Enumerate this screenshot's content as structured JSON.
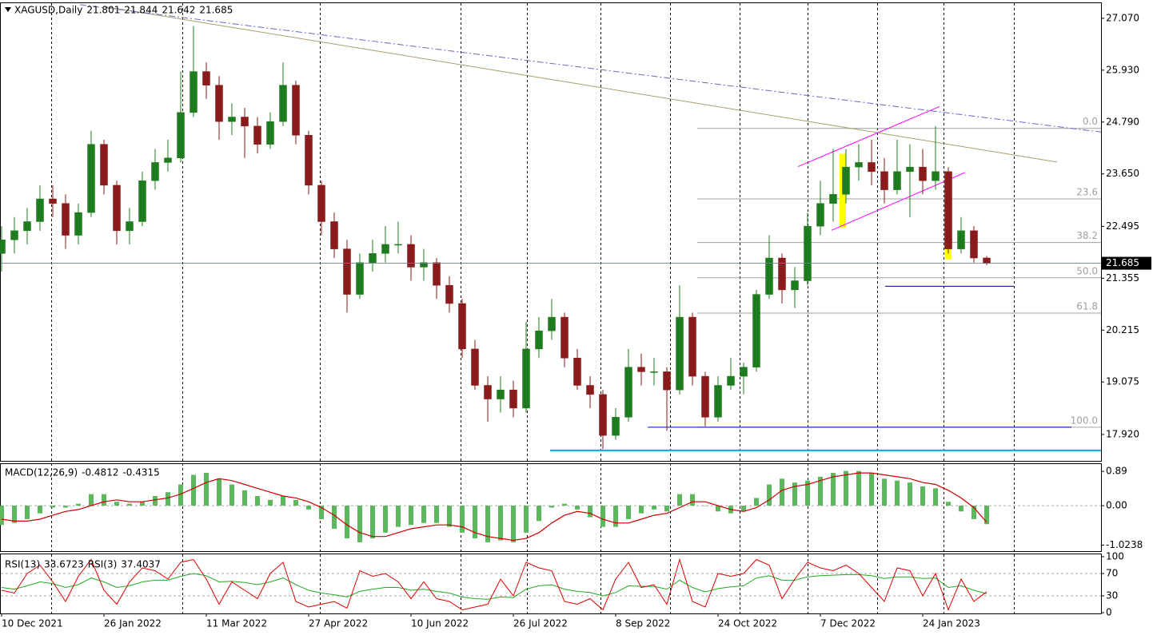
{
  "chart_data": [
    {
      "type": "candlestick",
      "title": "XAGUSD,Daily",
      "colors": {
        "up": "#1e7b1e",
        "down": "#8b1a1a"
      },
      "x": [
        0,
        4,
        8,
        12,
        16,
        20,
        24,
        28,
        32,
        36,
        40,
        44,
        48,
        52,
        56,
        60,
        64,
        68,
        72,
        76,
        80,
        84,
        88,
        92,
        96,
        100,
        104,
        108,
        112,
        116,
        120,
        124,
        128,
        132,
        136,
        140,
        144,
        148,
        152,
        156,
        160,
        164,
        168,
        172,
        176,
        180,
        184,
        188,
        192,
        196,
        200,
        204,
        208,
        212,
        216,
        220,
        224,
        228,
        232,
        236,
        240,
        244,
        248,
        252,
        256,
        260,
        264,
        268,
        272,
        276,
        280,
        284,
        288,
        292,
        296,
        300,
        304,
        308
      ],
      "ohlc": [
        [
          21.9,
          22.5,
          21.5,
          22.2
        ],
        [
          22.2,
          22.7,
          21.9,
          22.4
        ],
        [
          22.4,
          22.9,
          22.1,
          22.6
        ],
        [
          22.6,
          23.4,
          22.4,
          23.1
        ],
        [
          23.1,
          23.4,
          22.7,
          23.0
        ],
        [
          23.0,
          23.2,
          22.0,
          22.3
        ],
        [
          22.3,
          23.0,
          22.1,
          22.8
        ],
        [
          22.8,
          24.6,
          22.7,
          24.3
        ],
        [
          24.3,
          24.4,
          23.2,
          23.4
        ],
        [
          23.4,
          23.5,
          22.1,
          22.4
        ],
        [
          22.4,
          22.9,
          22.1,
          22.6
        ],
        [
          22.6,
          23.7,
          22.5,
          23.5
        ],
        [
          23.5,
          24.2,
          23.3,
          23.9
        ],
        [
          23.9,
          24.4,
          23.7,
          24.0
        ],
        [
          24.0,
          25.9,
          23.9,
          25.0
        ],
        [
          25.0,
          26.9,
          24.9,
          25.9
        ],
        [
          25.9,
          26.1,
          25.3,
          25.6
        ],
        [
          25.6,
          25.8,
          24.4,
          24.8
        ],
        [
          24.8,
          25.2,
          24.5,
          24.9
        ],
        [
          24.9,
          25.1,
          24.0,
          24.7
        ],
        [
          24.7,
          24.9,
          24.1,
          24.3
        ],
        [
          24.3,
          25.0,
          24.2,
          24.8
        ],
        [
          24.8,
          26.1,
          24.7,
          25.6
        ],
        [
          25.6,
          25.7,
          24.3,
          24.5
        ],
        [
          24.5,
          24.6,
          23.2,
          23.4
        ],
        [
          23.4,
          23.5,
          22.3,
          22.6
        ],
        [
          22.6,
          22.8,
          21.8,
          22.0
        ],
        [
          22.0,
          22.2,
          20.6,
          21.0
        ],
        [
          21.0,
          21.9,
          20.9,
          21.7
        ],
        [
          21.7,
          22.2,
          21.5,
          21.9
        ],
        [
          21.9,
          22.5,
          21.7,
          22.1
        ],
        [
          22.1,
          22.6,
          21.9,
          22.1
        ],
        [
          22.1,
          22.3,
          21.3,
          21.6
        ],
        [
          21.6,
          22.0,
          21.3,
          21.7
        ],
        [
          21.7,
          21.8,
          20.9,
          21.2
        ],
        [
          21.2,
          21.4,
          20.6,
          20.8
        ],
        [
          20.8,
          20.9,
          19.6,
          19.8
        ],
        [
          19.8,
          20.0,
          18.9,
          19.0
        ],
        [
          19.0,
          19.2,
          18.2,
          18.7
        ],
        [
          18.7,
          19.2,
          18.4,
          18.9
        ],
        [
          18.9,
          19.1,
          18.3,
          18.5
        ],
        [
          18.5,
          20.4,
          18.4,
          19.8
        ],
        [
          19.8,
          20.5,
          19.6,
          20.2
        ],
        [
          20.2,
          20.9,
          20.0,
          20.5
        ],
        [
          20.5,
          20.6,
          19.4,
          19.6
        ],
        [
          19.6,
          19.8,
          18.9,
          19.0
        ],
        [
          19.0,
          19.2,
          18.5,
          18.8
        ],
        [
          18.8,
          18.9,
          17.6,
          17.9
        ],
        [
          17.9,
          18.5,
          17.8,
          18.3
        ],
        [
          18.3,
          19.8,
          18.2,
          19.4
        ],
        [
          19.4,
          19.7,
          19.0,
          19.3
        ],
        [
          19.3,
          19.6,
          19.0,
          19.3
        ],
        [
          19.3,
          19.4,
          18.0,
          18.9
        ],
        [
          18.9,
          21.2,
          18.8,
          20.5
        ],
        [
          20.5,
          20.6,
          19.0,
          19.2
        ],
        [
          19.2,
          19.3,
          18.1,
          18.3
        ],
        [
          18.3,
          19.2,
          18.2,
          19.0
        ],
        [
          19.0,
          19.6,
          18.9,
          19.2
        ],
        [
          19.2,
          19.5,
          18.8,
          19.4
        ],
        [
          19.4,
          21.1,
          19.3,
          21.0
        ],
        [
          21.0,
          22.3,
          20.9,
          21.8
        ],
        [
          21.8,
          21.9,
          20.8,
          21.1
        ],
        [
          21.1,
          21.6,
          20.7,
          21.3
        ],
        [
          21.3,
          22.8,
          21.2,
          22.5
        ],
        [
          22.5,
          23.5,
          22.3,
          23.0
        ],
        [
          23.0,
          24.2,
          22.6,
          23.2
        ],
        [
          23.2,
          24.2,
          23.0,
          23.8
        ],
        [
          23.8,
          24.3,
          23.5,
          23.9
        ],
        [
          23.9,
          24.4,
          23.4,
          23.7
        ],
        [
          23.7,
          24.0,
          23.0,
          23.3
        ],
        [
          23.3,
          24.4,
          23.2,
          23.7
        ],
        [
          23.7,
          24.3,
          22.7,
          23.8
        ],
        [
          23.8,
          24.2,
          23.2,
          23.5
        ],
        [
          23.5,
          24.7,
          23.3,
          23.7
        ],
        [
          23.7,
          23.8,
          21.9,
          22.0
        ],
        [
          22.0,
          22.7,
          21.9,
          22.4
        ],
        [
          22.4,
          22.5,
          21.7,
          21.8
        ],
        [
          21.801,
          21.844,
          21.642,
          21.685
        ]
      ],
      "xlim": [
        -0.5,
        343.75
      ],
      "ylim": [
        17.34,
        27.42
      ],
      "xticks": [
        {
          "value": 0,
          "label": "10 Dec 2021"
        },
        {
          "value": 32,
          "label": "26 Jan 2022"
        },
        {
          "value": 64,
          "label": "11 Mar 2022"
        },
        {
          "value": 96,
          "label": "27 Apr 2022"
        },
        {
          "value": 128,
          "label": "10 Jun 2022"
        },
        {
          "value": 160,
          "label": "26 Jul 2022"
        },
        {
          "value": 192,
          "label": "8 Sep 2022"
        },
        {
          "value": 224,
          "label": "24 Oct 2022"
        },
        {
          "value": 256,
          "label": "7 Dec 2022"
        },
        {
          "value": 288,
          "label": "24 Jan 2023"
        }
      ],
      "yticks": [
        {
          "value": 27.07,
          "label": "27.070"
        },
        {
          "value": 25.93,
          "label": "25.930"
        },
        {
          "value": 24.79,
          "label": "24.790"
        },
        {
          "value": 23.65,
          "label": "23.650"
        },
        22.495,
        21.355,
        20.215,
        19.075,
        {
          "value": 17.92,
          "label": "17.920"
        }
      ],
      "xgrid": [
        15.5,
        56.5,
        99.5,
        143.5,
        164.25,
        187.25,
        209,
        230.75,
        252,
        273.75,
        294.5,
        316.5
      ],
      "trendlines": [
        {
          "x": [
            32,
            330
          ],
          "y": [
            27.33,
            23.91
          ],
          "color": "#a89f6a",
          "style": "solid"
        },
        {
          "x": [
            24.5,
            343.75
          ],
          "y": [
            27.37,
            24.57
          ],
          "color": "#6666cc",
          "style": "dashdot"
        },
        {
          "x": [
            249,
            293.25
          ],
          "y": [
            23.81,
            25.13
          ],
          "color": "#ff00ff",
          "style": "solid"
        },
        {
          "x": [
            259.5,
            301.25
          ],
          "y": [
            22.41,
            23.68
          ],
          "color": "#ff00ff",
          "style": "solid"
        },
        {
          "x": [
            202,
            334.5
          ],
          "y": [
            18.08,
            18.08
          ],
          "color": "#0000cc",
          "style": "solid"
        },
        {
          "x": [
            276.25,
            316.5
          ],
          "y": [
            21.18,
            21.18
          ],
          "color": "#000080",
          "style": "solid"
        },
        {
          "x": [
            171.5,
            343.75
          ],
          "y": [
            17.57,
            17.57
          ],
          "color": "#00aaee",
          "style": "thick"
        }
      ],
      "highlights": [
        {
          "x": [
            262,
            264
          ],
          "y": [
            24.09,
            22.47
          ],
          "color": "#ffff00"
        },
        {
          "x": [
            295,
            297
          ],
          "y": [
            23.38,
            21.77
          ],
          "color": "#ffff00"
        }
      ],
      "fibonacci": {
        "x": [
          217.5,
          343.75
        ],
        "y": [
          24.65,
          18.08
        ],
        "color": "#a0a0a0",
        "levels": [
          {
            "value": 0,
            "label": "0.0"
          },
          23.6,
          38.2,
          {
            "value": 50,
            "label": "50.0"
          },
          61.8,
          {
            "value": 100,
            "label": "100.0"
          }
        ]
      }
    },
    {
      "type": "macd",
      "title": "MACD(12,26,9)",
      "histogram": {
        "color": "#5cb85c",
        "values": [
          -0.5,
          -0.45,
          -0.35,
          -0.2,
          -0.05,
          -0.05,
          0.05,
          0.3,
          0.3,
          0.1,
          0.05,
          0.1,
          0.25,
          0.35,
          0.55,
          0.8,
          0.85,
          0.7,
          0.55,
          0.4,
          0.25,
          0.15,
          0.25,
          0.15,
          -0.1,
          -0.35,
          -0.6,
          -0.85,
          -0.95,
          -0.85,
          -0.7,
          -0.55,
          -0.5,
          -0.45,
          -0.45,
          -0.55,
          -0.7,
          -0.85,
          -0.95,
          -0.9,
          -0.95,
          -0.7,
          -0.4,
          -0.05,
          0.05,
          -0.1,
          -0.3,
          -0.55,
          -0.55,
          -0.35,
          -0.2,
          -0.1,
          -0.15,
          0.3,
          0.3,
          0.0,
          -0.15,
          -0.2,
          -0.15,
          0.2,
          0.55,
          0.7,
          0.6,
          0.65,
          0.75,
          0.85,
          0.9,
          0.9,
          0.85,
          0.7,
          0.65,
          0.6,
          0.5,
          0.45,
          0.1,
          -0.15,
          -0.35,
          -0.4812
        ]
      },
      "signal": {
        "color": "#cc0000",
        "values": [
          -0.35,
          -0.4,
          -0.4,
          -0.35,
          -0.25,
          -0.15,
          -0.1,
          0.0,
          0.1,
          0.15,
          0.1,
          0.1,
          0.15,
          0.2,
          0.3,
          0.45,
          0.6,
          0.7,
          0.65,
          0.55,
          0.45,
          0.35,
          0.25,
          0.2,
          0.1,
          -0.05,
          -0.25,
          -0.5,
          -0.7,
          -0.8,
          -0.8,
          -0.7,
          -0.6,
          -0.55,
          -0.5,
          -0.5,
          -0.55,
          -0.7,
          -0.8,
          -0.85,
          -0.9,
          -0.85,
          -0.7,
          -0.45,
          -0.25,
          -0.15,
          -0.2,
          -0.35,
          -0.45,
          -0.45,
          -0.35,
          -0.25,
          -0.2,
          -0.05,
          0.1,
          0.1,
          0.0,
          -0.1,
          -0.15,
          -0.05,
          0.15,
          0.4,
          0.5,
          0.55,
          0.65,
          0.75,
          0.8,
          0.85,
          0.85,
          0.8,
          0.75,
          0.7,
          0.6,
          0.55,
          0.4,
          0.2,
          -0.05,
          -0.4315
        ]
      },
      "ylim": [
        -1.18,
        1.1
      ],
      "yticks": [
        0.89,
        {
          "value": 0,
          "label": "0.00"
        },
        -1.0238
      ],
      "levels": [
        0
      ]
    },
    {
      "type": "line",
      "series": [
        {
          "name": "RSI(13)",
          "color": "#22aa22",
          "values": [
            45,
            42,
            48,
            55,
            52,
            45,
            50,
            62,
            55,
            45,
            48,
            55,
            58,
            58,
            65,
            70,
            66,
            55,
            56,
            54,
            50,
            55,
            62,
            50,
            40,
            35,
            32,
            28,
            38,
            42,
            45,
            45,
            40,
            42,
            38,
            35,
            28,
            25,
            24,
            28,
            27,
            42,
            48,
            50,
            42,
            38,
            36,
            30,
            36,
            48,
            47,
            47,
            42,
            58,
            45,
            37,
            43,
            46,
            48,
            62,
            66,
            58,
            58,
            64,
            66,
            67,
            68,
            68,
            66,
            61,
            64,
            64,
            61,
            62,
            45,
            48,
            40,
            33.6723
          ]
        },
        {
          "name": "RSI(3)",
          "color": "#dd0000",
          "values": [
            40,
            35,
            70,
            85,
            55,
            20,
            65,
            95,
            40,
            15,
            55,
            80,
            75,
            60,
            90,
            95,
            60,
            15,
            55,
            40,
            25,
            70,
            90,
            20,
            10,
            15,
            20,
            8,
            75,
            65,
            70,
            55,
            25,
            55,
            25,
            20,
            5,
            10,
            15,
            60,
            30,
            90,
            80,
            75,
            20,
            15,
            25,
            5,
            60,
            90,
            45,
            50,
            15,
            95,
            20,
            10,
            70,
            65,
            70,
            95,
            85,
            25,
            60,
            90,
            80,
            75,
            85,
            70,
            45,
            20,
            80,
            75,
            30,
            70,
            5,
            60,
            20,
            37.4037
          ]
        }
      ],
      "ylim": [
        -1.4,
        105.7
      ],
      "yticks": [
        100,
        70,
        30,
        0
      ],
      "levels": [
        70,
        30
      ]
    }
  ]
}
